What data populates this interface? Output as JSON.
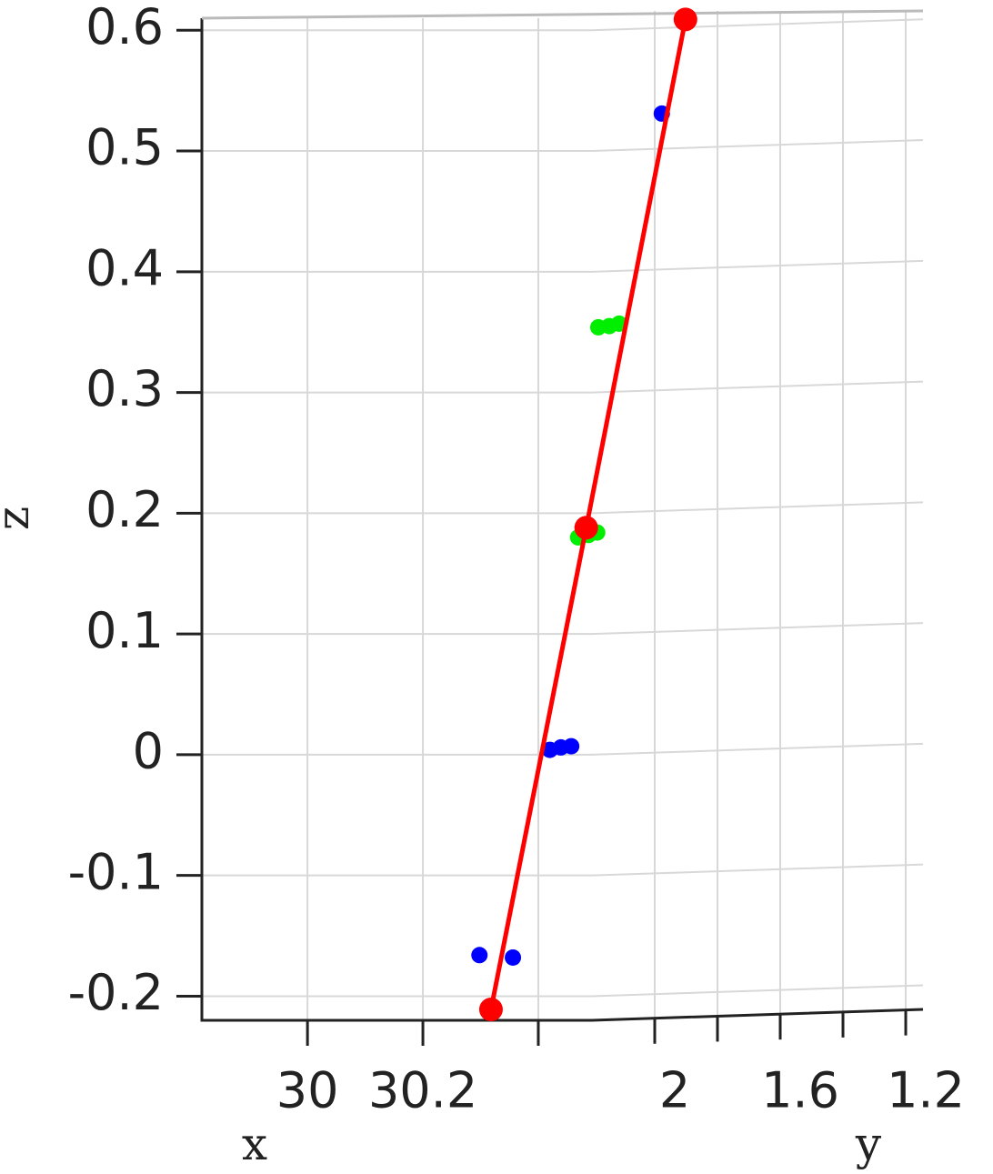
{
  "chart_data": {
    "type": "scatter3d",
    "axis_labels": {
      "x": "x",
      "y": "y",
      "z": "z"
    },
    "xlim": [
      29.817,
      30.493
    ],
    "xticks": [
      30,
      30.2,
      {
        "value": 30.4,
        "label": null
      }
    ],
    "ylim": [
      2.2,
      1.145
    ],
    "yticks": [
      2,
      {
        "value": 1.8,
        "label": null
      },
      1.6,
      {
        "value": 1.4,
        "label": null
      },
      1.2
    ],
    "zlim": [
      -0.22,
      0.61
    ],
    "zticks": [
      -0.2,
      -0.1,
      0,
      0.1,
      0.2,
      0.3,
      0.4,
      0.5,
      0.6
    ],
    "grid": true,
    "series": [
      {
        "color": "#0000ff",
        "line": false,
        "x": [
          30.298,
          30.356,
          30.42,
          30.439,
          30.457,
          30.614
        ],
        "z": [
          -0.166,
          -0.168,
          0.004,
          0.006,
          0.007,
          0.531
        ]
      },
      {
        "color": "#00ee00",
        "line": false,
        "x": [
          30.504,
          30.523,
          30.54,
          30.469,
          30.487,
          30.502
        ],
        "z": [
          0.354,
          0.355,
          0.357,
          0.18,
          0.182,
          0.184
        ]
      },
      {
        "color": "#ff0000",
        "line": true,
        "x": [
          30.318,
          30.483,
          30.655
        ],
        "z": [
          -0.211,
          0.188,
          0.609
        ]
      }
    ]
  }
}
